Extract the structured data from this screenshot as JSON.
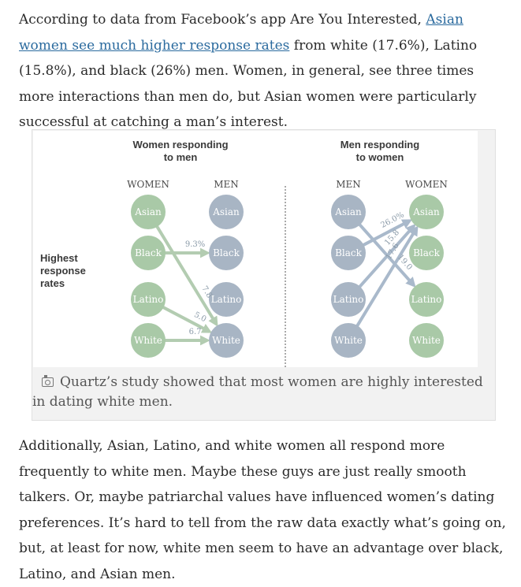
{
  "article": {
    "para1_prefix": "According to data from Facebook’s app Are You Interested, ",
    "para1_link": "Asian women see much higher response rates",
    "para1_suffix": " from white (17.6%), Latino (15.8%), and black (26%) men. Women, in general, see three times more interactions than men do, but Asian women were particularly successful at catching a man’s interest.",
    "para2": "Additionally, Asian, Latino, and white women all respond more frequently to white men. Maybe these guys are just really smooth talkers. Or, maybe patriarchal values have influenced women’s dating preferences. It’s hard to tell from the raw data exactly what’s going on, but, at least for now, white men seem to have an advantage over black, Latino, and Asian men."
  },
  "figure": {
    "caption_icon": "camera-icon",
    "caption": "Quartz’s study showed that most women are highly interested in dating white men.",
    "side_label_lines": [
      "Highest",
      "response",
      "rates"
    ],
    "colors": {
      "women_node": "#a9c9a7",
      "men_node": "#a8b5c4",
      "arrow_women_left": "#b3ccb1",
      "arrow_men_right": "#a9b9cb",
      "divider": "#555555"
    }
  },
  "chart_data": [
    {
      "type": "diagram",
      "title_lines": [
        "Women responding",
        "to men"
      ],
      "left_header": "WOMEN",
      "right_header": "MEN",
      "left_nodes": [
        "Asian",
        "Black",
        "Latino",
        "White"
      ],
      "right_nodes": [
        "Asian",
        "Black",
        "Latino",
        "White"
      ],
      "arrows": [
        {
          "from": "Black",
          "to": "Black",
          "value": "9.3%"
        },
        {
          "from": "Asian",
          "to": "White",
          "value": "7.8"
        },
        {
          "from": "Latino",
          "to": "White",
          "value": "5.0"
        },
        {
          "from": "White",
          "to": "White",
          "value": "6.7"
        }
      ]
    },
    {
      "type": "diagram",
      "title_lines": [
        "Men responding",
        "to women"
      ],
      "left_header": "MEN",
      "right_header": "WOMEN",
      "left_nodes": [
        "Asian",
        "Black",
        "Latino",
        "White"
      ],
      "right_nodes": [
        "Asian",
        "Black",
        "Latino",
        "White"
      ],
      "arrows": [
        {
          "from": "Asian",
          "to": "Latino",
          "value": "19.0"
        },
        {
          "from": "Black",
          "to": "Asian",
          "value": "26.0%"
        },
        {
          "from": "Latino",
          "to": "Asian",
          "value": "15.8"
        },
        {
          "from": "White",
          "to": "Asian",
          "value": "17.6"
        }
      ]
    }
  ]
}
